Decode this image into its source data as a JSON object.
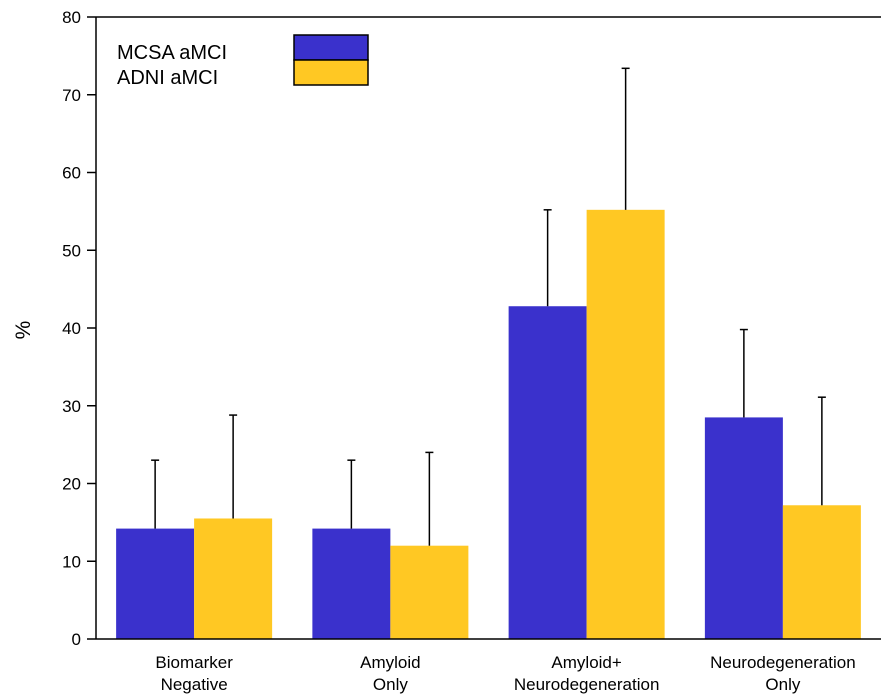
{
  "chart_data": {
    "type": "bar",
    "categories": [
      [
        "Biomarker",
        "Negative"
      ],
      [
        "Amyloid",
        "Only"
      ],
      [
        "Amyloid+",
        "Neurodegeneration"
      ],
      [
        "Neurodegeneration",
        "Only"
      ]
    ],
    "series": [
      {
        "name": "MCSA aMCI",
        "color": "#3a31cc",
        "values": [
          14.2,
          14.2,
          42.8,
          28.5
        ],
        "error_upper": [
          23.0,
          23.0,
          55.2,
          39.8
        ]
      },
      {
        "name": "ADNI aMCI",
        "color": "#ffc823",
        "values": [
          15.5,
          12.0,
          55.2,
          17.2
        ],
        "error_upper": [
          28.8,
          24.0,
          73.4,
          31.1
        ]
      }
    ],
    "ylabel": "%",
    "xlabel": "",
    "ylim": [
      0,
      80
    ],
    "yticks": [
      0,
      10,
      20,
      30,
      40,
      50,
      60,
      70,
      80
    ],
    "grid": false,
    "legend_position": "top-left"
  }
}
